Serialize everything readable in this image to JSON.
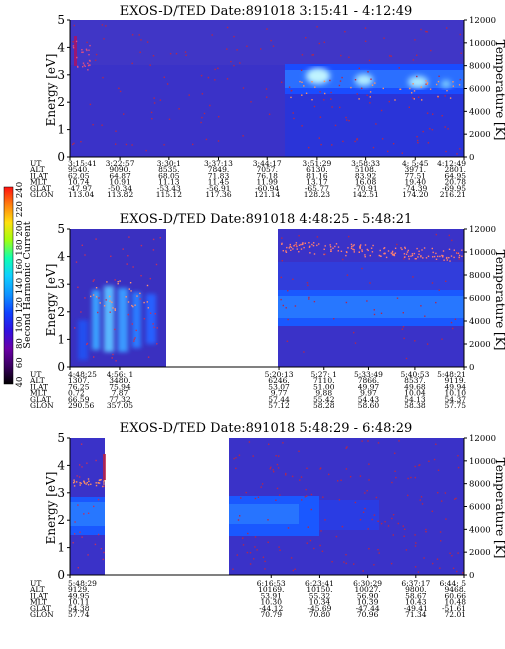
{
  "chart_data": [
    {
      "type": "heatmap",
      "title": "EXOS-D/TED   Date:891018  3:15:41 - 4:12:49",
      "ylabel_left": "Energy [eV]",
      "ylabel_right": "Temperature [K]",
      "ylim_left": [
        0,
        5
      ],
      "yticks_left": [
        "0",
        "1",
        "2",
        "3",
        "4",
        "5"
      ],
      "ylim_right": [
        0,
        12000
      ],
      "yticks_right": [
        "0",
        "2000",
        "4000",
        "6000",
        "8000",
        "10000",
        "12000"
      ],
      "row_labels": [
        "UT",
        "ALT",
        "ILAT",
        "MLT",
        "GLAT",
        "GLON"
      ],
      "columns": [
        [
          "3:15:41",
          "9540.",
          "62.05",
          "10.74",
          "-47.97",
          "113.04"
        ],
        [
          "3:22:57",
          "9090.",
          "64.87",
          "10.91",
          "-50.34",
          "113.82"
        ],
        [
          "3:30:1",
          "8535.",
          "68.05",
          "11.13",
          "-53.43",
          "115.12"
        ],
        [
          "3:37:13",
          "7849.",
          "71.83",
          "11.45",
          "-56.91",
          "117.36"
        ],
        [
          "3:44:17",
          "7057.",
          "76.18",
          "11.99",
          "-60.94",
          "121.14"
        ],
        [
          "3:51:29",
          "6130.",
          "81.16",
          "13.17",
          "-65.77",
          "128.23"
        ],
        [
          "3:58:33",
          "5108.",
          "83.92",
          "16.08",
          "-70.91",
          "142.51"
        ],
        [
          "4: 5:45",
          "3971.",
          "77.51",
          "19.40",
          "-74.39",
          "174.20"
        ],
        [
          "4:12:49",
          "2801.",
          "64.95",
          "20.78",
          "-69.95",
          "216.21"
        ]
      ],
      "data_gaps": []
    },
    {
      "type": "heatmap",
      "title": "EXOS-D/TED   Date:891018  4:48:25 - 5:48:21",
      "ylabel_left": "Energy [eV]",
      "ylabel_right": "Temperature [K]",
      "ylim_left": [
        0,
        5
      ],
      "yticks_left": [
        "0",
        "1",
        "2",
        "3",
        "4",
        "5"
      ],
      "ylim_right": [
        0,
        12000
      ],
      "yticks_right": [
        "0",
        "2000",
        "4000",
        "6000",
        "8000",
        "10000",
        "12000"
      ],
      "row_labels": [
        "UT",
        "ALT",
        "ILAT",
        "MLT",
        "GLAT",
        "GLON"
      ],
      "columns": [
        [
          "4:48:25",
          "1307.",
          "76.25",
          "0.72",
          "66.59",
          "290.56"
        ],
        [
          "4:56: 1",
          "3480.",
          "75.94",
          "7.87",
          "77.32",
          "357.05"
        ],
        [
          "5:20:13",
          "6246.",
          "53.07",
          "9.77",
          "57.44",
          "57.12"
        ],
        [
          "5:27: 1",
          "7110.",
          "51.00",
          "9.88",
          "55.42",
          "58.28"
        ],
        [
          "5:33:49",
          "7866.",
          "49.97",
          "9.97",
          "54.43",
          "58.60"
        ],
        [
          "5:40:53",
          "8537.",
          "49.68",
          "10.04",
          "54.13",
          "58.38"
        ],
        [
          "5:48:21",
          "9119.",
          "49.94",
          "10.10",
          "54.37",
          "57.75"
        ]
      ],
      "data_gaps": [
        "4:59 - 5:20"
      ]
    },
    {
      "type": "heatmap",
      "title": "EXOS-D/TED   Date:891018  5:48:29 - 6:48:29",
      "ylabel_left": "Energy [eV]",
      "ylabel_right": "Temperature [K]",
      "ylim_left": [
        0,
        5
      ],
      "yticks_left": [
        "0",
        "1",
        "2",
        "3",
        "4",
        "5"
      ],
      "ylim_right": [
        0,
        12000
      ],
      "yticks_right": [
        "0",
        "2000",
        "4000",
        "6000",
        "8000",
        "10000",
        "12000"
      ],
      "row_labels": [
        "UT",
        "ALT",
        "ILAT",
        "MLT",
        "GLAT",
        "GLON"
      ],
      "columns": [
        [
          "5:48:29",
          "9129.",
          "49.95",
          "10.11",
          "54.38",
          "57.74"
        ],
        [
          "6:16:53",
          "10169.",
          "53.91",
          "10.30",
          "-44.12",
          "70.79"
        ],
        [
          "6:23:41",
          "10150.",
          "55.32",
          "10.34",
          "-45.69",
          "70.80"
        ],
        [
          "6:30:29",
          "10027.",
          "56.90",
          "10.39",
          "-47.44",
          "70.96"
        ],
        [
          "6:37:17",
          "9800.",
          "58.67",
          "10.43",
          "-49.41",
          "71.34"
        ],
        [
          "6:44: 5",
          "9468.",
          "60.66",
          "10.48",
          "-51.61",
          "72.01"
        ]
      ],
      "data_gaps": [
        "5:50 - 6:16"
      ]
    }
  ],
  "colorbar": {
    "label": "Second Harmonic Current",
    "ticks": [
      "40",
      "60",
      "80",
      "100",
      "120",
      "140",
      "160",
      "180",
      "200",
      "220",
      "240"
    ],
    "colors": [
      "#000000",
      "#3a0060",
      "#6a00a8",
      "#3010e0",
      "#1040ff",
      "#1090ff",
      "#10d0ff",
      "#10ffb0",
      "#a0ff10",
      "#ffe010",
      "#ff8010",
      "#ff1010"
    ]
  }
}
